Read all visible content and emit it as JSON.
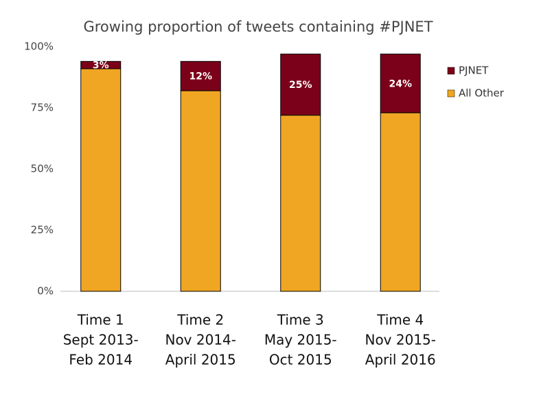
{
  "chart_data": {
    "type": "stacked_bar",
    "title": "Growing proportion of tweets containing #PJNET",
    "categories": [
      [
        "Time 1",
        "Sept 2013-",
        "Feb 2014"
      ],
      [
        "Time 2",
        "Nov 2014-",
        "April 2015"
      ],
      [
        "Time 3",
        "May 2015-",
        "Oct 2015"
      ],
      [
        "Time 4",
        "Nov 2015-",
        "April 2016"
      ]
    ],
    "series": [
      {
        "name": "All Other",
        "color": "#f0a623",
        "values": [
          91,
          82,
          72,
          73
        ]
      },
      {
        "name": "PJNET",
        "color": "#7b0019",
        "values": [
          3,
          12,
          25,
          24
        ],
        "value_labels": [
          "3%",
          "12%",
          "25%",
          "24%"
        ]
      }
    ],
    "ylim": [
      0,
      100
    ],
    "yticks": [
      {
        "value": 0,
        "label": "0%"
      },
      {
        "value": 25,
        "label": "25%"
      },
      {
        "value": 50,
        "label": "50%"
      },
      {
        "value": 75,
        "label": "75%"
      },
      {
        "value": 100,
        "label": "100%"
      }
    ],
    "legend": "right"
  }
}
